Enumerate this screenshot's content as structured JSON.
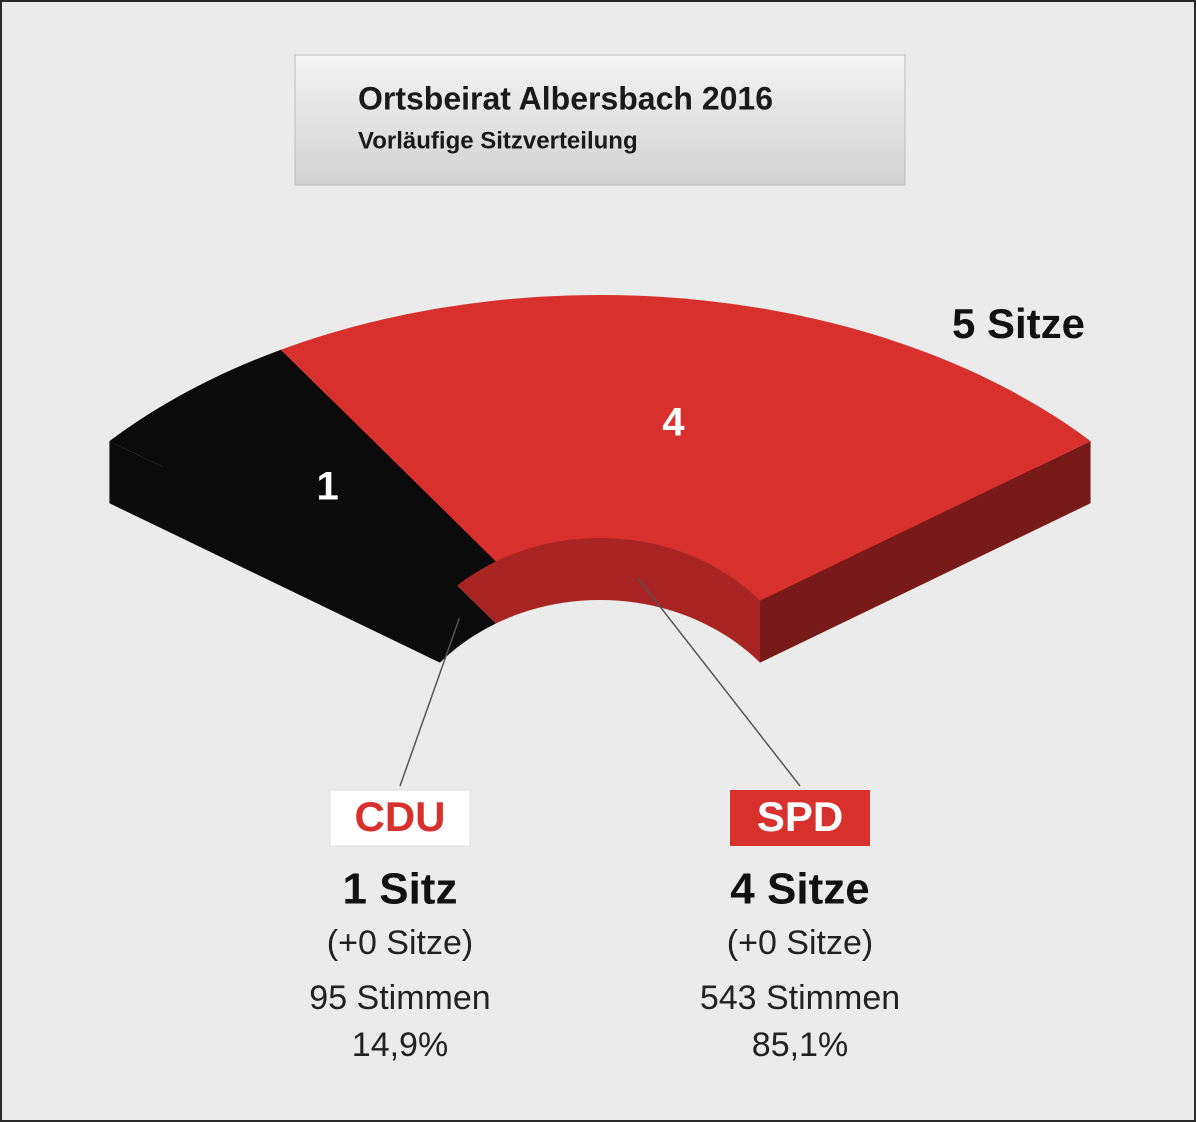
{
  "chart_data": {
    "type": "seat-arc",
    "title": "Ortsbeirat Albersbach 2016",
    "subtitle": "Vorläufige Sitzverteilung",
    "total_label": "5 Sitze",
    "categories": [
      "CDU",
      "SPD"
    ],
    "values": [
      1,
      4
    ],
    "colors": [
      "#0b0b0b",
      "#d8302d"
    ],
    "seat_labels": [
      "1 Sitz",
      "4 Sitze"
    ],
    "change_labels": [
      "(+0 Sitze)",
      "(+0 Sitze)"
    ],
    "vote_labels": [
      "95 Stimmen",
      "543 Stimmen"
    ],
    "share_labels": [
      "14,9%",
      "85,1%"
    ]
  }
}
